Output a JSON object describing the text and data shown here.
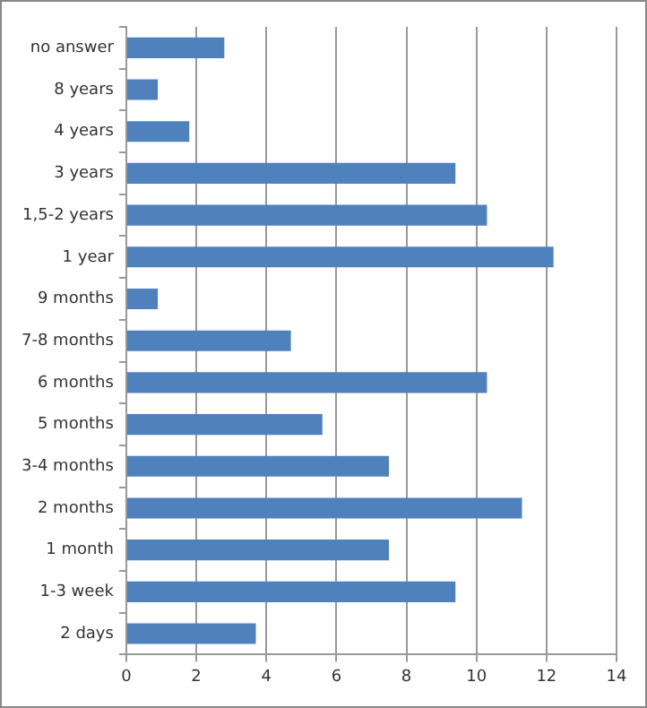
{
  "chart_data": {
    "type": "bar",
    "orientation": "horizontal",
    "categories": [
      "no answer",
      "8 years",
      "4 years",
      "3 years",
      "1,5-2 years",
      "1 year",
      "9 months",
      "7-8 months",
      "6 months",
      "5 months",
      "3-4 months",
      "2 months",
      "1 month",
      "1-3 week",
      "2 days"
    ],
    "values": [
      2.8,
      0.9,
      1.8,
      9.4,
      10.3,
      12.2,
      0.9,
      4.7,
      10.3,
      5.6,
      7.5,
      11.3,
      7.5,
      9.4,
      3.7
    ],
    "color": "#4f81bd",
    "xlim": [
      0,
      14
    ],
    "xticks": [
      0,
      2,
      4,
      6,
      8,
      10,
      12,
      14
    ],
    "grid": "x",
    "legend": false
  }
}
